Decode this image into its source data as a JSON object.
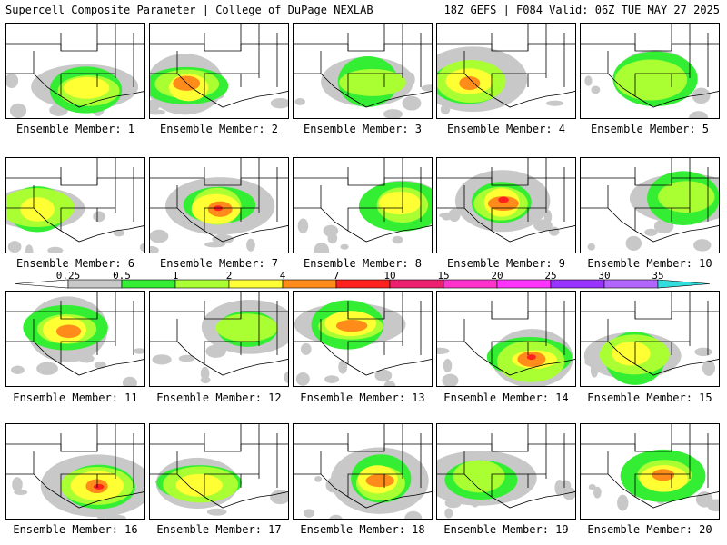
{
  "header": {
    "left": "Supercell Composite Parameter | College of DuPage NEXLAB",
    "right": "18Z GEFS | F084 Valid: 06Z TUE MAY 27 2025"
  },
  "colorbar": {
    "labels": [
      "0.25",
      "0.5",
      "1",
      "2",
      "4",
      "7",
      "10",
      "15",
      "20",
      "25",
      "30",
      "35"
    ],
    "colors": [
      "#c8c8c8",
      "#33ee33",
      "#aaff33",
      "#ffff33",
      "#ff8c1a",
      "#ff2020",
      "#ee1f6e",
      "#ff33cc",
      "#ff33ff",
      "#9933ff",
      "#b366ff",
      "#33dddd"
    ]
  },
  "members": [
    {
      "label": "Ensemble Member: 1"
    },
    {
      "label": "Ensemble Member: 2"
    },
    {
      "label": "Ensemble Member: 3"
    },
    {
      "label": "Ensemble Member: 4"
    },
    {
      "label": "Ensemble Member: 5"
    },
    {
      "label": "Ensemble Member: 6"
    },
    {
      "label": "Ensemble Member: 7"
    },
    {
      "label": "Ensemble Member: 8"
    },
    {
      "label": "Ensemble Member: 9"
    },
    {
      "label": "Ensemble Member: 10"
    },
    {
      "label": "Ensemble Member: 11"
    },
    {
      "label": "Ensemble Member: 12"
    },
    {
      "label": "Ensemble Member: 13"
    },
    {
      "label": "Ensemble Member: 14"
    },
    {
      "label": "Ensemble Member: 15"
    },
    {
      "label": "Ensemble Member: 16"
    },
    {
      "label": "Ensemble Member: 17"
    },
    {
      "label": "Ensemble Member: 18"
    },
    {
      "label": "Ensemble Member: 19"
    },
    {
      "label": "Ensemble Member: 20"
    }
  ]
}
